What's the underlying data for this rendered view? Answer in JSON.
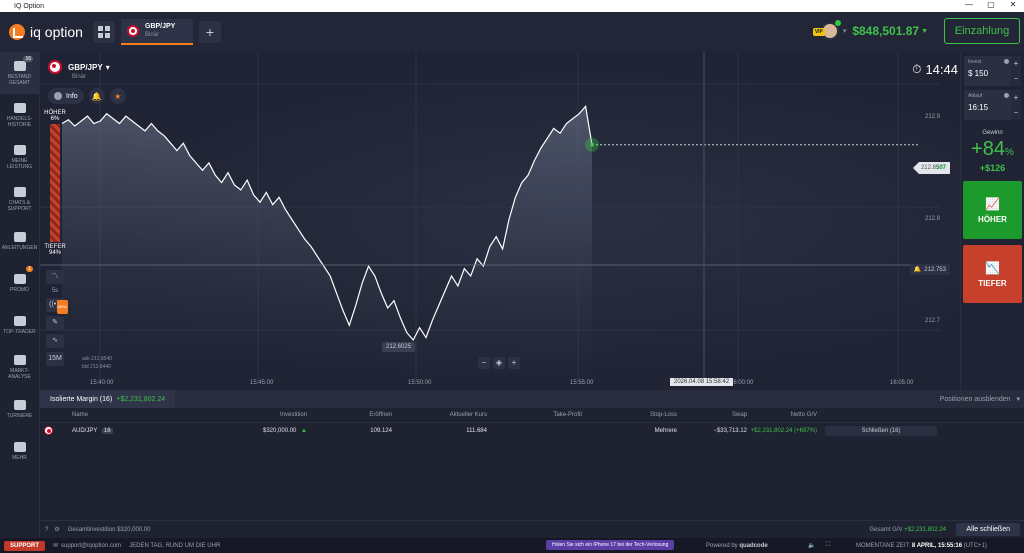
{
  "window": {
    "title": "IQ Option",
    "minimize": "—",
    "maximize": "▢",
    "close": "✕"
  },
  "topbar": {
    "logo": "iq option",
    "asset_tab": {
      "name": "GBP/JPY",
      "sub": "Binär"
    },
    "add_tab": "+",
    "vip_badge": "VIP",
    "balance": "$848,501.87",
    "balance_caret": "▼",
    "deposit": "Einzahlung"
  },
  "sidebar": {
    "items": [
      {
        "label": "BESTAND GESAMT",
        "badge": "16",
        "active": true
      },
      {
        "label": "HANDELS-HISTORIE"
      },
      {
        "label": "MEINE LEISTUNG"
      },
      {
        "label": "CHATS & SUPPORT"
      },
      {
        "label": "ANLEITUNGEN"
      },
      {
        "label": "PROMO",
        "badge": "1"
      },
      {
        "label": "TOP-TRADER"
      },
      {
        "label": "MARKT-ANALYSE"
      },
      {
        "label": "TURNIERE"
      },
      {
        "label": "MEHR"
      }
    ]
  },
  "chart_header": {
    "asset": "GBP/JPY",
    "caret": "▾",
    "type": "Binär",
    "info": "Info",
    "timer_icon": "⏱",
    "timer": "14:44"
  },
  "chart_tools": {
    "hoher_label": "HÖHER",
    "hoher_pct": "6%",
    "tiefer_label": "TIEFER",
    "tiefer_pct": "94%",
    "timeframe": "5s",
    "new_badge": "NEW",
    "candle_size": "15M",
    "ask": "ask 212.8540",
    "bid": "bid 212.8440",
    "zoom_out": "−",
    "zoom_reset": "◈",
    "zoom_in": "+"
  },
  "chart_data": {
    "type": "area",
    "series": [
      {
        "values": [
          212.868,
          212.871,
          212.866,
          212.87,
          212.874,
          212.868,
          212.87,
          212.876,
          212.872,
          212.868,
          212.874,
          212.87,
          212.866,
          212.862,
          212.868,
          212.862,
          212.858,
          212.852,
          212.846,
          212.852,
          212.842,
          212.836,
          212.83,
          212.836,
          212.826,
          212.82,
          212.828,
          212.818,
          212.814,
          212.822,
          212.81,
          212.804,
          212.812,
          212.802,
          212.808,
          212.798,
          212.79,
          212.782,
          212.774,
          212.768,
          212.76,
          212.752,
          212.744,
          212.73,
          212.716,
          212.704,
          212.72,
          212.738,
          212.752,
          212.744,
          212.73,
          212.718,
          212.724,
          212.71,
          212.698,
          212.692,
          212.702,
          212.694,
          212.708,
          212.72,
          212.732,
          212.744,
          212.736,
          212.75,
          212.744,
          212.758,
          212.752,
          212.768,
          212.776,
          212.766,
          212.79,
          212.808,
          212.82,
          212.826,
          212.838,
          212.848,
          212.856,
          212.864,
          212.86,
          212.868,
          212.872,
          212.876,
          212.882,
          212.8507
        ]
      }
    ],
    "yticks": [
      "212.9",
      "212.8",
      "212.7"
    ],
    "ylim": [
      212.666,
      212.918
    ],
    "xticks": [
      "15:40:00",
      "15:45:00",
      "15:50:00",
      "15:55:00",
      "16:00:00",
      "16:05:00"
    ],
    "current_price": "212.8",
    "current_price_hl": "507",
    "alt_price": "212.753",
    "low_label": "212.6025",
    "datetime_tag": "2026.04.08 15:58:42"
  },
  "trade_panel": {
    "invest_label": "Invest",
    "invest_value": "$ 150",
    "expiry_label": "Ablauf",
    "expiry_value": "16:15",
    "plus": "+",
    "minus": "−",
    "gain_label": "Gewinn",
    "gain_pct": "+84",
    "gain_pct_sym": "%",
    "gain_amount": "+$126",
    "buy_label": "HÖHER",
    "sell_label": "TIEFER"
  },
  "positions": {
    "tab_label": "Isolierte Margin (16)",
    "tab_value": "+$2,231,802.24",
    "hide": "Positionen ausblenden",
    "columns": [
      "Name",
      "Investition",
      "Eröffnen",
      "Aktueller Kurs",
      "Take-Profit",
      "Stop-Loss",
      "Swap",
      "Netto G/V"
    ],
    "rows": [
      {
        "name": "AUD/JPY",
        "count": "16",
        "invest": "$320,000.00",
        "open": "109.124",
        "current": "111.684",
        "take_profit": "",
        "stop_loss": "Mehrere",
        "swap": "−$33,713.12",
        "net": "+$2,231,802.24 (+697%)",
        "close": "Schließen (16)"
      }
    ]
  },
  "footer": {
    "total_invest": "Gesamtinvestition $320,000.00",
    "total_pl_label": "Gesamt G/V",
    "total_pl_value": "+$2,231,802.24",
    "close_all": "Alle schließen"
  },
  "statusbar": {
    "support_btn": "SUPPORT",
    "email": "support@iqoption.com",
    "hours": "JEDEN TAG, RUND UM DIE UHR",
    "promo": "Holen Sie sich ein iPhone 17 bei der Tech-Verlosung",
    "powered": "Powered by",
    "powered_brand": "quadcode",
    "time_label": "MOMENTANE ZEIT:",
    "time_value": "8 APRIL, 15:55:16",
    "tz": "(UTC+1)"
  }
}
